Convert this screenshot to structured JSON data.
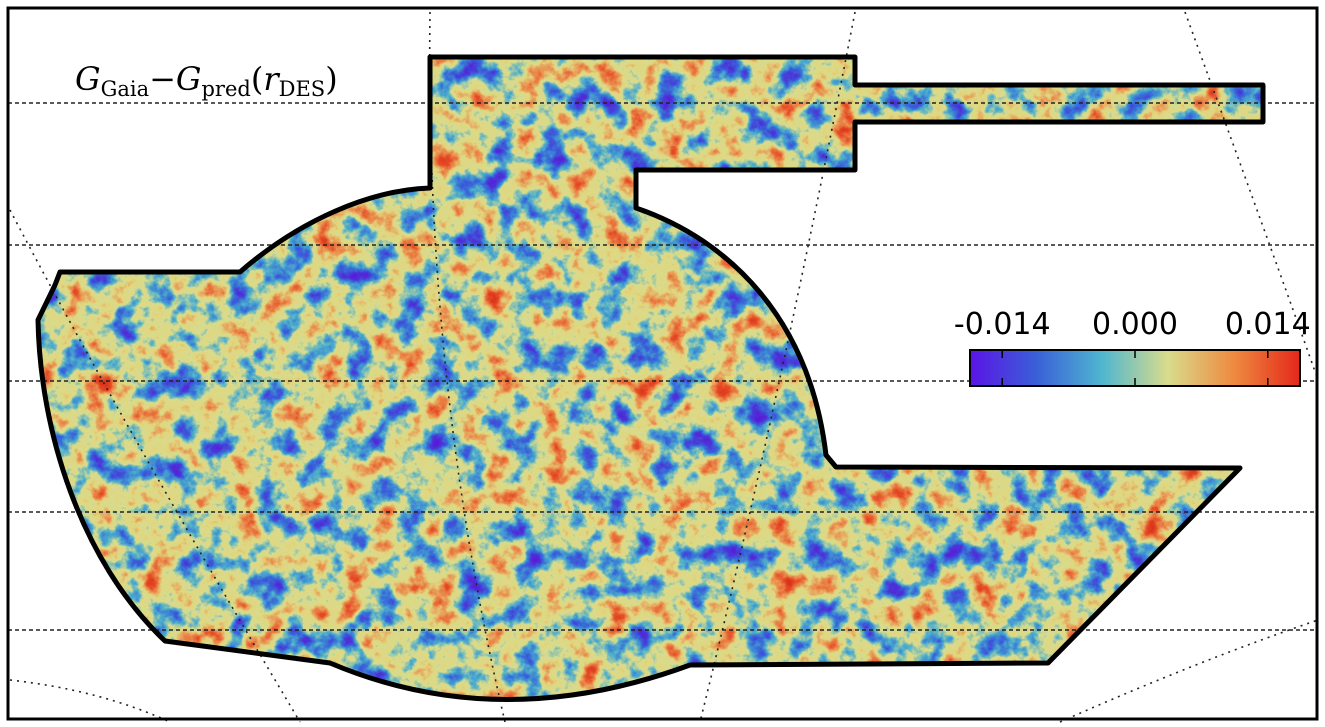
{
  "chart_data": {
    "type": "map",
    "title": [
      "G",
      "Gaia",
      "−",
      "G",
      "pred",
      "(",
      "r",
      "DES",
      ")"
    ],
    "colorbar": {
      "lim": [
        -0.0174,
        0.0174
      ],
      "ticks": [
        -0.014,
        {
          "value": 0,
          "label": "0.000"
        },
        0.014
      ],
      "colors": [
        "#5a14e6",
        "#3a5fd8",
        "#4fb6cf",
        "#d9dc8c",
        "#ee8a40",
        "#e3281a"
      ]
    }
  }
}
